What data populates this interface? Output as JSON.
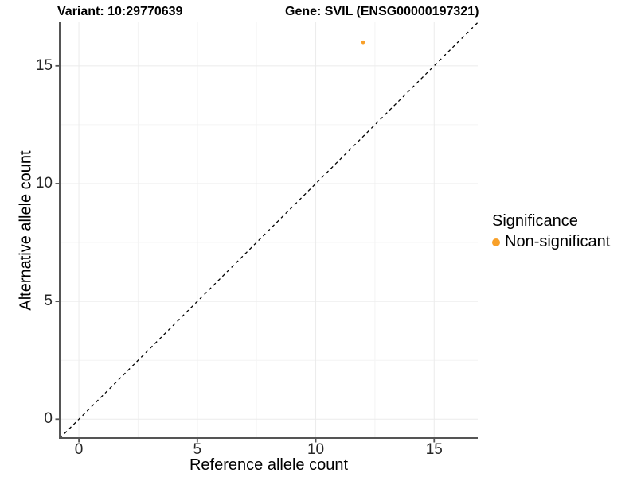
{
  "figure": {
    "background": "#FFFFFF"
  },
  "chart_data": {
    "type": "scatter",
    "titles": {
      "left": "Variant: 10:29770639",
      "right": "Gene: SVIL (ENSG00000197321)"
    },
    "xlabel": "Reference allele count",
    "ylabel": "Alternative allele count",
    "x_ticks": [
      0,
      5,
      10,
      15
    ],
    "y_ticks": [
      0,
      5,
      10,
      15
    ],
    "x_minor_ticks": [
      2.5,
      7.5,
      12.5
    ],
    "y_minor_ticks": [
      2.5,
      7.5,
      12.5
    ],
    "xlim": [
      -0.81,
      16.84
    ],
    "ylim": [
      -0.8,
      16.85
    ],
    "grid": true,
    "points": [
      {
        "x": 12,
        "y": 16,
        "series": "Non-significant"
      }
    ],
    "point_radius_px": 2.3,
    "identity_line": {
      "style": "dashed",
      "slope": 1,
      "intercept": 0
    },
    "legend": {
      "position": "right",
      "title": "Significance",
      "items": [
        {
          "label": "Non-significant",
          "color": "#F8A029"
        }
      ]
    },
    "colors": {
      "point": "#F8A029",
      "grid_major": "#EBEBEB",
      "grid_minor": "#F4F4F4",
      "axis_line": "#555555",
      "tick_mark": "#555555",
      "tick_text": "#262626",
      "title_text": "#000000",
      "identity_line": "#000000"
    }
  }
}
